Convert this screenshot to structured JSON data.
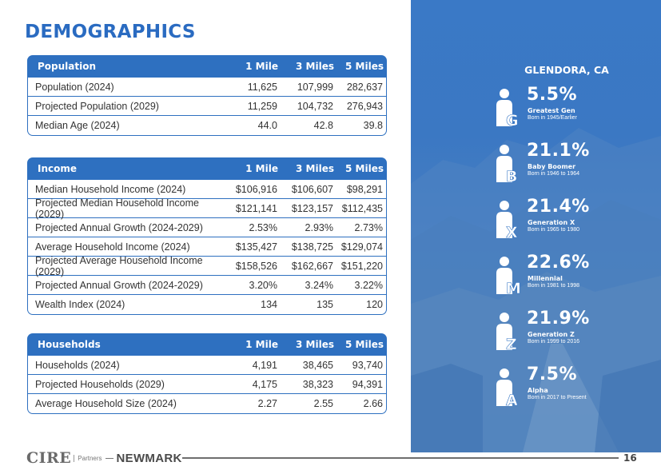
{
  "page": {
    "title": "DEMOGRAPHICS",
    "number": "16"
  },
  "population": {
    "header": [
      "Population",
      "1 Mile",
      "3 Miles",
      "5 Miles"
    ],
    "rows": [
      [
        "Population (2024)",
        "11,625",
        "107,999",
        "282,637"
      ],
      [
        "Projected Population (2029)",
        "11,259",
        "104,732",
        "276,943"
      ],
      [
        "Median Age (2024)",
        "44.0",
        "42.8",
        "39.8"
      ]
    ]
  },
  "income": {
    "header": [
      "Income",
      "1 Mile",
      "3 Miles",
      "5 Miles"
    ],
    "rows": [
      [
        "Median Household Income (2024)",
        "$106,916",
        "$106,607",
        "$98,291"
      ],
      [
        "Projected Median Household Income (2029)",
        "$121,141",
        "$123,157",
        "$112,435"
      ],
      [
        "Projected Annual Growth (2024-2029)",
        "2.53%",
        "2.93%",
        "2.73%"
      ],
      [
        "Average Household Income (2024)",
        "$135,427",
        "$138,725",
        "$129,074"
      ],
      [
        "Projected Average Household Income (2029)",
        "$158,526",
        "$162,667",
        "$151,220"
      ],
      [
        "Projected Annual Growth (2024-2029)",
        "3.20%",
        "3.24%",
        "3.22%"
      ],
      [
        "Wealth Index (2024)",
        "134",
        "135",
        "120"
      ]
    ]
  },
  "households": {
    "header": [
      "Households",
      "1 Mile",
      "3 Miles",
      "5 Miles"
    ],
    "rows": [
      [
        "Households (2024)",
        "4,191",
        "38,465",
        "93,740"
      ],
      [
        "Projected Households (2029)",
        "4,175",
        "38,323",
        "94,391"
      ],
      [
        "Average Household Size (2024)",
        "2.27",
        "2.55",
        "2.66"
      ]
    ]
  },
  "sidebar": {
    "city": "GLENDORA, CA",
    "generations": [
      {
        "letter": "G",
        "percent": "5.5%",
        "name": "Greatest Gen",
        "born": "Born in 1945/Earlier"
      },
      {
        "letter": "B",
        "percent": "21.1%",
        "name": "Baby Boomer",
        "born": "Born in 1946 to 1964"
      },
      {
        "letter": "X",
        "percent": "21.4%",
        "name": "Generation X",
        "born": "Born in 1965 to 1980"
      },
      {
        "letter": "M",
        "percent": "22.6%",
        "name": "Millennial",
        "born": "Born in 1981 to 1998"
      },
      {
        "letter": "Z",
        "percent": "21.9%",
        "name": "Generation Z",
        "born": "Born in 1999 to 2016"
      },
      {
        "letter": "A",
        "percent": "7.5%",
        "name": "Alpha",
        "born": "Born in 2017 to Present"
      }
    ]
  },
  "footer": {
    "logo_main": "CIRE",
    "logo_partners": "Partners",
    "logo_newmark": "NEWMARK"
  },
  "colors": {
    "accent": "#2e70c0",
    "title": "#2a6bc1",
    "sidebar": "#3a79c6"
  }
}
